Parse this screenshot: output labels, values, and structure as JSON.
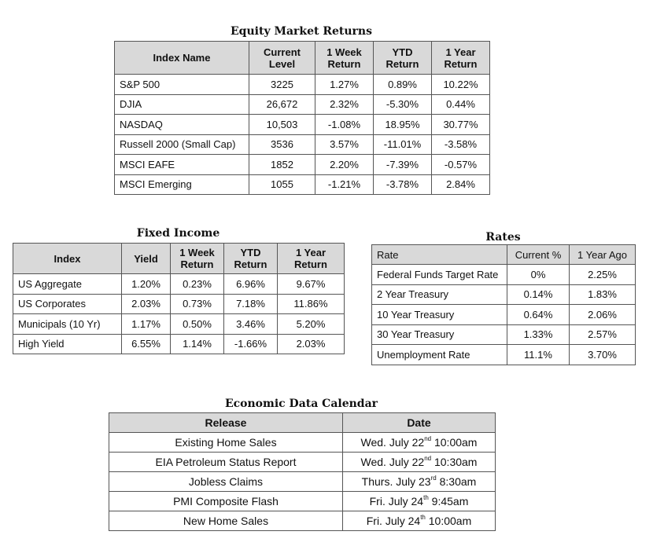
{
  "equity": {
    "title": "Equity Market Returns",
    "headers": [
      "Index Name",
      "Current Level",
      "1 Week Return",
      "YTD Return",
      "1 Year Return"
    ],
    "rows": [
      [
        "S&P 500",
        "3225",
        "1.27%",
        "0.89%",
        "10.22%"
      ],
      [
        "DJIA",
        "26,672",
        "2.32%",
        "-5.30%",
        "0.44%"
      ],
      [
        "NASDAQ",
        "10,503",
        "-1.08%",
        "18.95%",
        "30.77%"
      ],
      [
        "Russell 2000 (Small Cap)",
        "3536",
        "3.57%",
        "-11.01%",
        "-3.58%"
      ],
      [
        "MSCI EAFE",
        "1852",
        "2.20%",
        "-7.39%",
        "-0.57%"
      ],
      [
        "MSCI Emerging",
        "1055",
        "-1.21%",
        "-3.78%",
        "2.84%"
      ]
    ]
  },
  "fixed_income": {
    "title": "Fixed Income",
    "headers": [
      "Index",
      "Yield",
      "1 Week Return",
      "YTD Return",
      "1 Year Return"
    ],
    "rows": [
      [
        "US Aggregate",
        "1.20%",
        "0.23%",
        "6.96%",
        "9.67%"
      ],
      [
        "US Corporates",
        "2.03%",
        "0.73%",
        "7.18%",
        "11.86%"
      ],
      [
        "Municipals (10 Yr)",
        "1.17%",
        "0.50%",
        "3.46%",
        "5.20%"
      ],
      [
        "High Yield",
        "6.55%",
        "1.14%",
        "-1.66%",
        "2.03%"
      ]
    ]
  },
  "rates": {
    "title": "Rates",
    "headers": [
      "Rate",
      "Current %",
      "1 Year Ago"
    ],
    "rows": [
      [
        "Federal Funds Target Rate",
        "0%",
        "2.25%"
      ],
      [
        "2 Year Treasury",
        "0.14%",
        "1.83%"
      ],
      [
        "10 Year Treasury",
        "0.64%",
        "2.06%"
      ],
      [
        "30 Year Treasury",
        "1.33%",
        "2.57%"
      ],
      [
        "Unemployment Rate",
        "11.1%",
        "3.70%"
      ]
    ]
  },
  "calendar": {
    "title": "Economic Data Calendar",
    "headers": [
      "Release",
      "Date"
    ],
    "rows": [
      {
        "release": "Existing Home Sales",
        "date_pre": "Wed. July 22",
        "date_sup": "nd",
        "date_post": " 10:00am"
      },
      {
        "release": "EIA Petroleum Status Report",
        "date_pre": "Wed. July 22",
        "date_sup": "nd",
        "date_post": " 10:30am"
      },
      {
        "release": "Jobless Claims",
        "date_pre": "Thurs. July 23",
        "date_sup": "rd",
        "date_post": " 8:30am"
      },
      {
        "release": "PMI Composite Flash",
        "date_pre": "Fri. July 24",
        "date_sup": "th",
        "date_post": " 9:45am"
      },
      {
        "release": "New Home Sales",
        "date_pre": "Fri. July 24",
        "date_sup": "th",
        "date_post": " 10:00am"
      }
    ]
  }
}
